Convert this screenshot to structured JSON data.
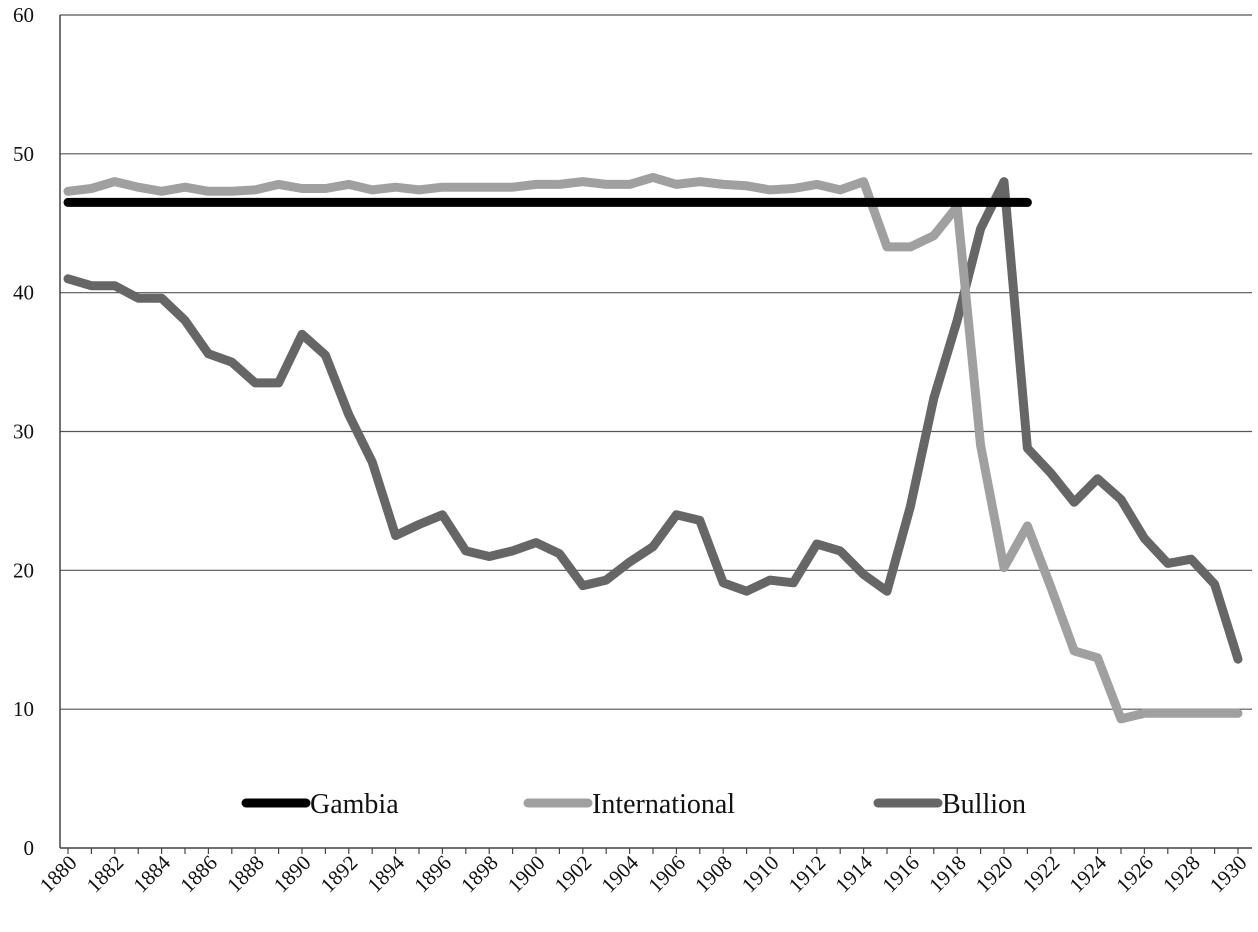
{
  "chart_data": {
    "type": "line",
    "title": "",
    "xlabel": "",
    "ylabel": "",
    "xlim": [
      1880,
      1930
    ],
    "ylim": [
      0,
      60
    ],
    "y_ticks": [
      "0",
      "10",
      "20",
      "30",
      "40",
      "50",
      "60"
    ],
    "x_ticks": [
      "1880",
      "1882",
      "1884",
      "1886",
      "1888",
      "1890",
      "1892",
      "1894",
      "1896",
      "1898",
      "1900",
      "1902",
      "1904",
      "1906",
      "1908",
      "1910",
      "1912",
      "1914",
      "1916",
      "1918",
      "1920",
      "1922",
      "1924",
      "1926",
      "1928",
      "1930"
    ],
    "grid": "horizontal",
    "legend_position": "bottom",
    "series": [
      {
        "name": "Gambia",
        "color": "#000000",
        "x": [
          1880,
          1921
        ],
        "values": [
          46.5,
          46.5
        ]
      },
      {
        "name": "International",
        "color": "#a0a0a0",
        "x": [
          1880,
          1881,
          1882,
          1883,
          1884,
          1885,
          1886,
          1887,
          1888,
          1889,
          1890,
          1891,
          1892,
          1893,
          1894,
          1895,
          1896,
          1897,
          1898,
          1899,
          1900,
          1901,
          1902,
          1903,
          1904,
          1905,
          1906,
          1907,
          1908,
          1909,
          1910,
          1911,
          1912,
          1913,
          1914,
          1915,
          1916,
          1917,
          1918,
          1919,
          1920,
          1921,
          1922,
          1923,
          1924,
          1925,
          1926,
          1927,
          1928,
          1929,
          1930
        ],
        "values": [
          47.3,
          47.5,
          48.0,
          47.6,
          47.3,
          47.6,
          47.3,
          47.3,
          47.4,
          47.8,
          47.5,
          47.5,
          47.8,
          47.4,
          47.6,
          47.4,
          47.6,
          47.6,
          47.6,
          47.6,
          47.8,
          47.8,
          48.0,
          47.8,
          47.8,
          48.3,
          47.8,
          48.0,
          47.8,
          47.7,
          47.4,
          47.5,
          47.8,
          47.4,
          48.0,
          43.3,
          43.3,
          44.1,
          46.2,
          29.0,
          20.2,
          23.2,
          18.8,
          14.2,
          13.7,
          9.3,
          9.7,
          9.7,
          9.7,
          9.7,
          9.7
        ]
      },
      {
        "name": "Bullion",
        "color": "#666666",
        "x": [
          1880,
          1881,
          1882,
          1883,
          1884,
          1885,
          1886,
          1887,
          1888,
          1889,
          1890,
          1891,
          1892,
          1893,
          1894,
          1895,
          1896,
          1897,
          1898,
          1899,
          1900,
          1901,
          1902,
          1903,
          1904,
          1905,
          1906,
          1907,
          1908,
          1909,
          1910,
          1911,
          1912,
          1913,
          1914,
          1915,
          1916,
          1917,
          1918,
          1919,
          1920,
          1921,
          1922,
          1923,
          1924,
          1925,
          1926,
          1927,
          1928,
          1929,
          1930
        ],
        "values": [
          41.0,
          40.5,
          40.5,
          39.6,
          39.6,
          38.0,
          35.6,
          35.0,
          33.5,
          33.5,
          37.0,
          35.5,
          31.2,
          27.8,
          22.5,
          23.3,
          24.0,
          21.4,
          21.0,
          21.4,
          22.0,
          21.2,
          18.9,
          19.3,
          20.6,
          21.7,
          24.0,
          23.6,
          19.1,
          18.5,
          19.3,
          19.1,
          21.9,
          21.4,
          19.7,
          18.5,
          24.6,
          32.4,
          38.0,
          44.6,
          48.0,
          28.8,
          27.0,
          24.9,
          26.6,
          25.1,
          22.3,
          20.5,
          20.8,
          19.0,
          13.6
        ]
      }
    ]
  }
}
